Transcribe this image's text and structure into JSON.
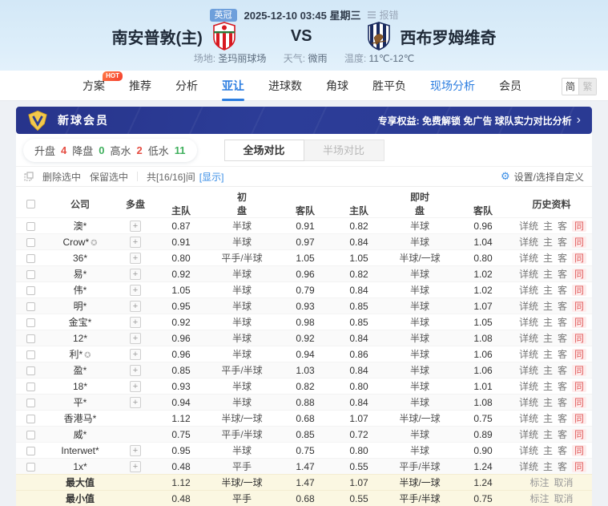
{
  "header": {
    "league_badge": "英冠",
    "datetime": "2025-12-10 03:45 星期三",
    "report_link": "报错",
    "home_team": "南安普敦(主)",
    "vs": "VS",
    "away_team": "西布罗姆维奇",
    "venue_label": "场地:",
    "venue": "圣玛丽球场",
    "weather_label": "天气:",
    "weather": "微雨",
    "temp_label": "温度:",
    "temp": "11℃-12℃"
  },
  "nav": {
    "tabs": [
      {
        "label": "方案",
        "badge": "HOT",
        "state": "normal"
      },
      {
        "label": "推荐",
        "state": "normal"
      },
      {
        "label": "分析",
        "state": "normal"
      },
      {
        "label": "亚让",
        "state": "active"
      },
      {
        "label": "进球数",
        "state": "normal"
      },
      {
        "label": "角球",
        "state": "normal"
      },
      {
        "label": "胜平负",
        "state": "normal"
      },
      {
        "label": "现场分析",
        "state": "highlight"
      },
      {
        "label": "会员",
        "state": "normal"
      }
    ],
    "lang_simplified": "简",
    "lang_traditional": "繁"
  },
  "banner": {
    "title": "新球会员",
    "benefits": "专享权益: 免费解锁 免广告 球队实力对比分析",
    "arrow": "›"
  },
  "filters": {
    "items": [
      {
        "label": "升盘",
        "value": "4",
        "color": "#e54d42"
      },
      {
        "label": "降盘",
        "value": "0",
        "color": "#3eaf5c"
      },
      {
        "label": "高水",
        "value": "2",
        "color": "#e54d42"
      },
      {
        "label": "低水",
        "value": "11",
        "color": "#3eaf5c"
      }
    ]
  },
  "view_tabs": {
    "full": "全场对比",
    "half": "半场对比"
  },
  "toolbar": {
    "delete_selected": "删除选中",
    "keep_selected": "保留选中",
    "count_text": "共[16/16]间",
    "show_link": "[显示]",
    "settings": "设置/选择自定义",
    "gear_icon": "⚙"
  },
  "table": {
    "headers": {
      "company": "公司",
      "multi": "多盘",
      "initial_group": "初",
      "live_group": "即时",
      "home": "主队",
      "handicap": "盘",
      "away": "客队",
      "history": "历史资料"
    },
    "history_links": [
      "详统",
      "主",
      "客",
      "同"
    ],
    "company_badge_icon": "✪",
    "rows": [
      {
        "company": "澳*",
        "badge": false,
        "multi": true,
        "init_home": "0.87",
        "init_hcp": "半球",
        "init_away": "0.91",
        "live_home": "0.82",
        "live_hcp": "半球",
        "live_away": "0.96"
      },
      {
        "company": "Crow*",
        "badge": true,
        "multi": true,
        "init_home": "0.91",
        "init_hcp": "半球",
        "init_away": "0.97",
        "live_home": "0.84",
        "live_hcp": "半球",
        "live_away": "1.04"
      },
      {
        "company": "36*",
        "badge": false,
        "multi": true,
        "init_home": "0.80",
        "init_hcp": "平手/半球",
        "init_away": "1.05",
        "live_home": "1.05",
        "live_hcp": "半球/一球",
        "live_away": "0.80"
      },
      {
        "company": "易*",
        "badge": false,
        "multi": true,
        "init_home": "0.92",
        "init_hcp": "半球",
        "init_away": "0.96",
        "live_home": "0.82",
        "live_hcp": "半球",
        "live_away": "1.02"
      },
      {
        "company": "伟*",
        "badge": false,
        "multi": true,
        "init_home": "1.05",
        "init_hcp": "半球",
        "init_away": "0.79",
        "live_home": "0.84",
        "live_hcp": "半球",
        "live_away": "1.02"
      },
      {
        "company": "明*",
        "badge": false,
        "multi": true,
        "init_home": "0.95",
        "init_hcp": "半球",
        "init_away": "0.93",
        "live_home": "0.85",
        "live_hcp": "半球",
        "live_away": "1.07"
      },
      {
        "company": "金宝*",
        "badge": false,
        "multi": true,
        "init_home": "0.92",
        "init_hcp": "半球",
        "init_away": "0.98",
        "live_home": "0.85",
        "live_hcp": "半球",
        "live_away": "1.05"
      },
      {
        "company": "12*",
        "badge": false,
        "multi": true,
        "init_home": "0.96",
        "init_hcp": "半球",
        "init_away": "0.92",
        "live_home": "0.84",
        "live_hcp": "半球",
        "live_away": "1.08"
      },
      {
        "company": "利*",
        "badge": true,
        "multi": true,
        "init_home": "0.96",
        "init_hcp": "半球",
        "init_away": "0.94",
        "live_home": "0.86",
        "live_hcp": "半球",
        "live_away": "1.06"
      },
      {
        "company": "盈*",
        "badge": false,
        "multi": true,
        "init_home": "0.85",
        "init_hcp": "平手/半球",
        "init_away": "1.03",
        "live_home": "0.84",
        "live_hcp": "半球",
        "live_away": "1.06"
      },
      {
        "company": "18*",
        "badge": false,
        "multi": true,
        "init_home": "0.93",
        "init_hcp": "半球",
        "init_away": "0.82",
        "live_home": "0.80",
        "live_hcp": "半球",
        "live_away": "1.01"
      },
      {
        "company": "平*",
        "badge": false,
        "multi": true,
        "init_home": "0.94",
        "init_hcp": "半球",
        "init_away": "0.88",
        "live_home": "0.84",
        "live_hcp": "半球",
        "live_away": "1.08"
      },
      {
        "company": "香港马*",
        "badge": false,
        "multi": false,
        "init_home": "1.12",
        "init_hcp": "半球/一球",
        "init_away": "0.68",
        "live_home": "1.07",
        "live_hcp": "半球/一球",
        "live_away": "0.75"
      },
      {
        "company": "威*",
        "badge": false,
        "multi": false,
        "init_home": "0.75",
        "init_hcp": "平手/半球",
        "init_away": "0.85",
        "live_home": "0.72",
        "live_hcp": "半球",
        "live_away": "0.89"
      },
      {
        "company": "Interwet*",
        "badge": false,
        "multi": true,
        "init_home": "0.95",
        "init_hcp": "半球",
        "init_away": "0.75",
        "live_home": "0.80",
        "live_hcp": "半球",
        "live_away": "0.90"
      },
      {
        "company": "1x*",
        "badge": false,
        "multi": true,
        "init_home": "0.48",
        "init_hcp": "平手",
        "init_away": "1.47",
        "live_home": "0.55",
        "live_hcp": "平手/半球",
        "live_away": "1.24"
      }
    ],
    "footer_rows": [
      {
        "label": "最大值",
        "init_home": "1.12",
        "init_hcp": "半球/一球",
        "init_away": "1.47",
        "live_home": "1.07",
        "live_hcp": "半球/一球",
        "live_away": "1.24",
        "links": [
          "标注",
          "取消"
        ]
      },
      {
        "label": "最小值",
        "init_home": "0.48",
        "init_hcp": "平手",
        "init_away": "0.68",
        "live_home": "0.55",
        "live_hcp": "平手/半球",
        "live_away": "0.75",
        "links": [
          "标注",
          "取消"
        ]
      }
    ]
  },
  "colors": {
    "accent_blue": "#2b7de0",
    "banner_navy": "#2c3d92",
    "gold": "#f3c84b",
    "up_red": "#e54d42",
    "down_green": "#3eaf5c",
    "footer_bg": "#fbf7e2"
  }
}
